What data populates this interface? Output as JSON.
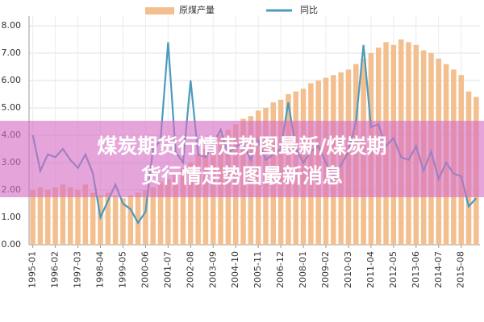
{
  "chart_data": {
    "type": "bar-line",
    "annotations": [
      "煤炭期货行情走势图最新/煤炭期",
      "货行情走势图最新消息"
    ],
    "categories": [
      "1995-01",
      null,
      null,
      "1996-02",
      null,
      null,
      "1997-03",
      null,
      null,
      "1998-04",
      null,
      null,
      "1999-05",
      null,
      null,
      "2000-06",
      null,
      null,
      "2001-07",
      null,
      null,
      "2002-08",
      null,
      null,
      "2003-09",
      null,
      null,
      "2004-10",
      null,
      null,
      "2005-11",
      null,
      null,
      "2006-12",
      null,
      null,
      "2008-01",
      null,
      null,
      "2009-02",
      null,
      null,
      "2010-03",
      null,
      null,
      "2011-04",
      null,
      null,
      "2012-05",
      null,
      null,
      "2013-06",
      null,
      null,
      "2014-07",
      null,
      null,
      "2015-08",
      null,
      null
    ],
    "series": [
      {
        "name": "原煤产量",
        "type": "bar",
        "color": "#f3bf8e",
        "values": [
          2.0,
          2.1,
          2.0,
          2.1,
          2.2,
          2.1,
          2.0,
          2.2,
          1.9,
          1.8,
          1.9,
          1.8,
          1.7,
          1.8,
          1.9,
          2.0,
          2.1,
          2.3,
          2.4,
          2.6,
          2.8,
          3.0,
          3.3,
          3.5,
          3.8,
          4.0,
          4.2,
          4.4,
          4.6,
          4.7,
          4.9,
          5.0,
          5.2,
          5.3,
          5.5,
          5.6,
          5.7,
          5.9,
          6.0,
          6.1,
          6.2,
          6.3,
          6.4,
          6.6,
          6.8,
          7.0,
          7.2,
          7.4,
          7.3,
          7.5,
          7.4,
          7.3,
          7.1,
          7.0,
          6.8,
          6.6,
          6.4,
          6.2,
          5.6,
          5.4
        ]
      },
      {
        "name": "同比",
        "type": "line",
        "color": "#4b9bbd",
        "values": [
          4.0,
          2.7,
          3.3,
          3.2,
          3.5,
          3.1,
          2.8,
          3.3,
          2.6,
          1.0,
          1.6,
          2.2,
          1.5,
          1.3,
          0.8,
          1.2,
          3.5,
          3.8,
          7.4,
          3.4,
          3.0,
          6.0,
          3.3,
          3.2,
          3.7,
          4.2,
          3.3,
          3.6,
          3.7,
          3.1,
          3.8,
          3.1,
          3.3,
          3.5,
          5.2,
          3.5,
          3.0,
          3.4,
          3.6,
          3.0,
          2.5,
          2.9,
          3.4,
          4.5,
          7.3,
          4.3,
          4.4,
          3.6,
          3.9,
          3.2,
          3.1,
          3.6,
          2.7,
          3.4,
          2.4,
          3.0,
          2.6,
          2.5,
          1.4,
          1.7
        ]
      }
    ],
    "ylim": [
      0,
      8
    ],
    "yticks": [
      {
        "value": 0,
        "label": "0.00"
      },
      {
        "value": 1,
        "label": "1.00"
      },
      {
        "value": 2,
        "label": "2.00"
      },
      {
        "value": 3,
        "label": "3.00"
      },
      {
        "value": 4,
        "label": "4.00"
      },
      {
        "value": 5,
        "label": "5.00"
      },
      {
        "value": 6,
        "label": "6.00"
      },
      {
        "value": 7,
        "label": "7.00"
      },
      {
        "value": 8,
        "label": "8.00"
      }
    ],
    "grid": true,
    "legend": "top"
  }
}
